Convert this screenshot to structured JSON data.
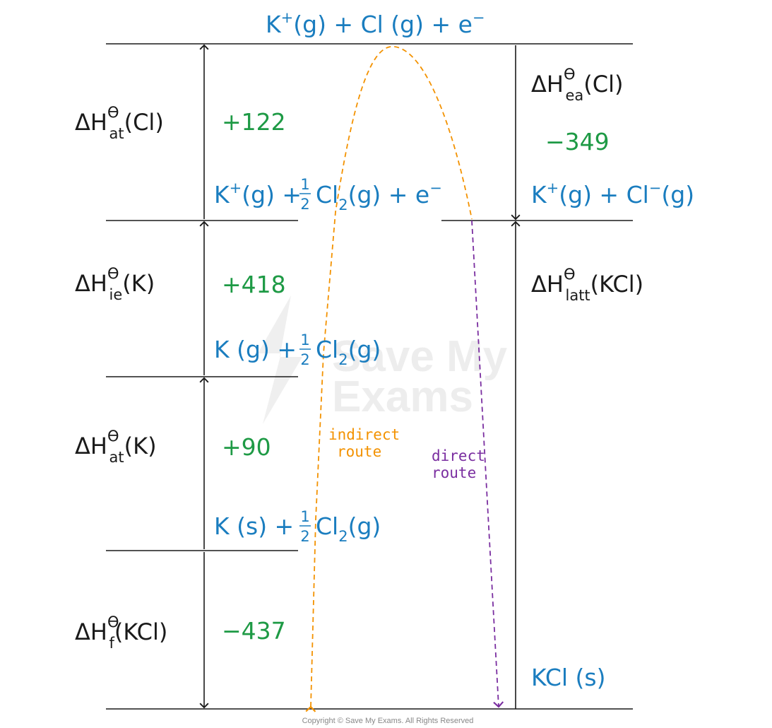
{
  "levels": {
    "top": {
      "main": "K",
      "sup": "+",
      "rest": "(g) + Cl (g) + e",
      "sup2": "−"
    },
    "upper_left": {
      "main": "K",
      "sup": "+",
      "a": "(g) + ",
      "num": "1",
      "den": "2",
      "b": "Cl",
      "sub": "2",
      "c": "(g) + e",
      "sup2": "−"
    },
    "upper_right": {
      "main": "K",
      "sup": "+",
      "a": "(g) + Cl",
      "sup2": "−",
      "b": "(g)"
    },
    "mid": {
      "a": "K (g) + ",
      "num": "1",
      "den": "2",
      "b": "Cl",
      "sub": "2",
      "c": "(g)"
    },
    "low": {
      "a": "K (s) + ",
      "num": "1",
      "den": "2",
      "b": "Cl",
      "sub": "2",
      "c": "(g)"
    },
    "bottom_right": "KCl (s)"
  },
  "steps": [
    {
      "delta": "ΔH",
      "theta": "ϴ",
      "sub": "at",
      "species": "(Cl)",
      "value": "+122"
    },
    {
      "delta": "ΔH",
      "theta": "ϴ",
      "sub": "ie",
      "species": "(K)",
      "value": "+418"
    },
    {
      "delta": "ΔH",
      "theta": "ϴ",
      "sub": "at",
      "species": "(K)",
      "value": "+90"
    },
    {
      "delta": "ΔH",
      "theta": "ϴ",
      "sub": "f",
      "species": "(KCl)",
      "value": "−437"
    },
    {
      "delta": "ΔH",
      "theta": "ϴ",
      "sub": "ea",
      "species": "(Cl)",
      "value": "−349"
    },
    {
      "delta": "ΔH",
      "theta": "ϴ",
      "sub": "latt",
      "species": "(KCl)",
      "value": ""
    }
  ],
  "routes": {
    "indirect": [
      "indirect",
      "route"
    ],
    "direct": [
      "direct",
      "route"
    ]
  },
  "colors": {
    "species": "#1a7dbf",
    "values": "#1e9a45",
    "indirect": "#f39200",
    "direct": "#7a2ea0",
    "lines": "#1a1a1a"
  },
  "watermark": [
    "Save My",
    "Exams"
  ],
  "copyright": "Copyright © Save My Exams. All Rights Reserved"
}
